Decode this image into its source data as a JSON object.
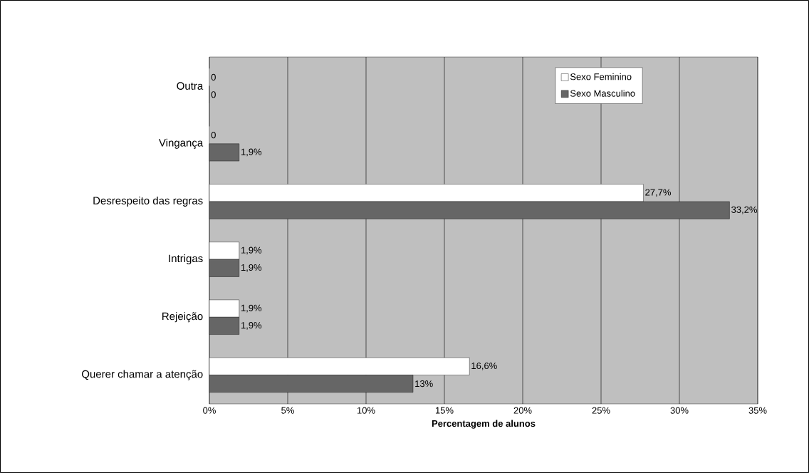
{
  "chart_data": {
    "type": "bar",
    "orientation": "horizontal",
    "categories": [
      "Outra",
      "Vingança",
      "Desrespeito das regras",
      "Intrigas",
      "Rejeição",
      "Querer chamar a atenção"
    ],
    "series": [
      {
        "name": "Sexo Feminino",
        "color": "#ffffff",
        "values": [
          0,
          0,
          27.7,
          1.9,
          1.9,
          16.6
        ],
        "value_labels": [
          "0",
          "0",
          "27,7%",
          "1,9%",
          "1,9%",
          "16,6%"
        ]
      },
      {
        "name": "Sexo Masculino",
        "color": "#666666",
        "values": [
          0,
          1.9,
          33.2,
          1.9,
          1.9,
          13
        ],
        "value_labels": [
          "0",
          "1,9%",
          "33,2%",
          "1,9%",
          "1,9%",
          "13%"
        ]
      }
    ],
    "xlabel": "Percentagem de alunos",
    "xlim": [
      0,
      35
    ],
    "xticks": [
      {
        "value": 0,
        "label": "0%"
      },
      {
        "value": 5,
        "label": "5%"
      },
      {
        "value": 10,
        "label": "10%"
      },
      {
        "value": 15,
        "label": "15%"
      },
      {
        "value": 20,
        "label": "20%"
      },
      {
        "value": 25,
        "label": "25%"
      },
      {
        "value": 30,
        "label": "30%"
      },
      {
        "value": 35,
        "label": "35%"
      }
    ],
    "grid": "x",
    "legend": "top right"
  }
}
